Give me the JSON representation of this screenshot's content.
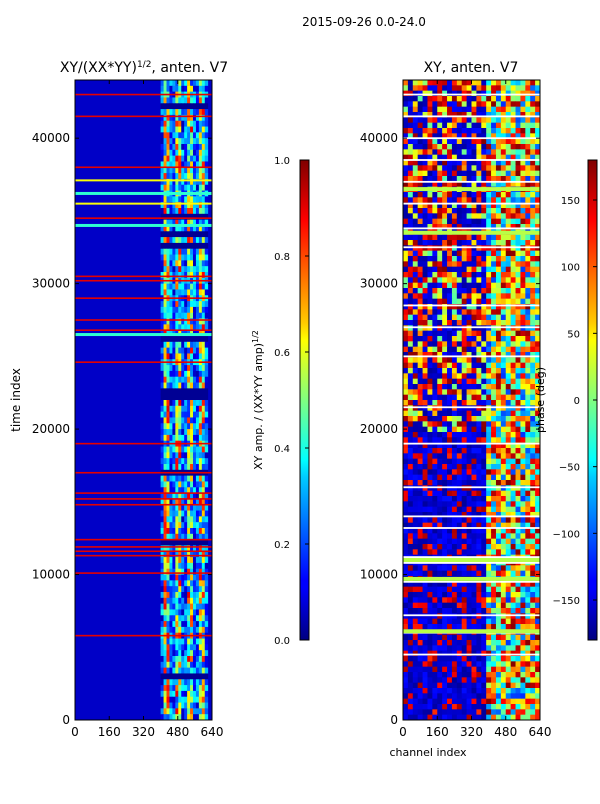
{
  "figure": {
    "suptitle": "2015-09-26 0.0-24.0"
  },
  "chart_data": [
    {
      "type": "heatmap",
      "title_prefix": "XY/(XX*YY)",
      "title_exponent": "1/2",
      "title_suffix": ", anten. V7",
      "xlabel": "",
      "ylabel": "time index",
      "xlim": [
        0,
        640
      ],
      "ylim": [
        0,
        44000
      ],
      "xticks": [
        0,
        160,
        320,
        480,
        640
      ],
      "yticks": [
        0,
        10000,
        20000,
        30000,
        40000
      ],
      "colorbar": {
        "label_prefix": "XY amp. / (XX*YY amp)",
        "label_exponent": "1/2",
        "range": [
          0.0,
          1.0
        ],
        "ticks": [
          "0.0",
          "0.2",
          "0.4",
          "0.6",
          "0.8",
          "1.0"
        ],
        "tick_values": [
          0.0,
          0.2,
          0.4,
          0.6,
          0.8,
          1.0
        ],
        "colormap": "jet"
      },
      "features": {
        "background_value": 0.03,
        "bright_channel_band": [
          400,
          620
        ],
        "red_flag_rows": [
          5800,
          10100,
          11300,
          11600,
          11900,
          12400,
          14800,
          15200,
          15600,
          17000,
          19000,
          24600,
          26800,
          27500,
          29000,
          30200,
          30500,
          34500,
          38000,
          41500,
          43000
        ],
        "yellow_flag_rows": [
          35500,
          37100
        ],
        "cyan_flag_rows": [
          34000,
          36200,
          26500
        ]
      }
    },
    {
      "type": "heatmap",
      "title": "XY, anten. V7",
      "xlabel": "channel index",
      "ylabel": "",
      "xlim": [
        0,
        640
      ],
      "ylim": [
        0,
        44000
      ],
      "xticks": [
        0,
        160,
        320,
        480,
        640
      ],
      "yticks": [
        0,
        10000,
        20000,
        30000,
        40000
      ],
      "colorbar": {
        "label": "phase (deg)",
        "range": [
          -180,
          180
        ],
        "ticks": [
          "−150",
          "−100",
          "−50",
          "0",
          "50",
          "100",
          "150"
        ],
        "tick_values": [
          -150,
          -100,
          -50,
          0,
          50,
          100,
          150
        ],
        "colormap": "jet"
      },
      "features": {
        "background_value": -160,
        "structured_channel_band": [
          400,
          640
        ],
        "white_flag_rows": [
          4500,
          6000,
          7200,
          9500,
          10800,
          11200,
          13200,
          14000,
          16000,
          19000,
          21500,
          25000,
          27000,
          28500,
          32500,
          33800,
          35500,
          37000,
          38500,
          40000,
          41500,
          43000
        ],
        "green_flag_rows": [
          6100,
          9700,
          11000,
          33500,
          36500
        ]
      }
    }
  ]
}
